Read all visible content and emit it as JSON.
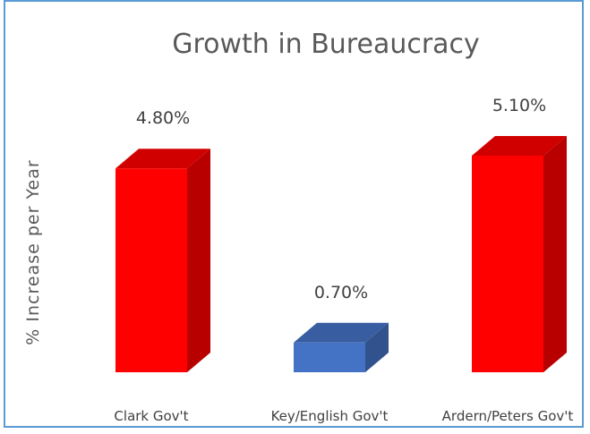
{
  "chart_data": {
    "type": "bar",
    "title": "Growth in Bureaucracy",
    "ylabel": "% Increase per Year",
    "xlabel": "",
    "categories": [
      "Clark Gov't",
      "Key/English Gov't",
      "Ardern/Peters Gov't"
    ],
    "values": [
      4.8,
      0.7,
      5.1
    ],
    "data_labels": [
      "4.80%",
      "0.70%",
      "5.10%"
    ],
    "colors": [
      "#ff0000",
      "#4472c4",
      "#ff0000"
    ],
    "grid": false,
    "legend": "none",
    "style": "3d-column"
  }
}
